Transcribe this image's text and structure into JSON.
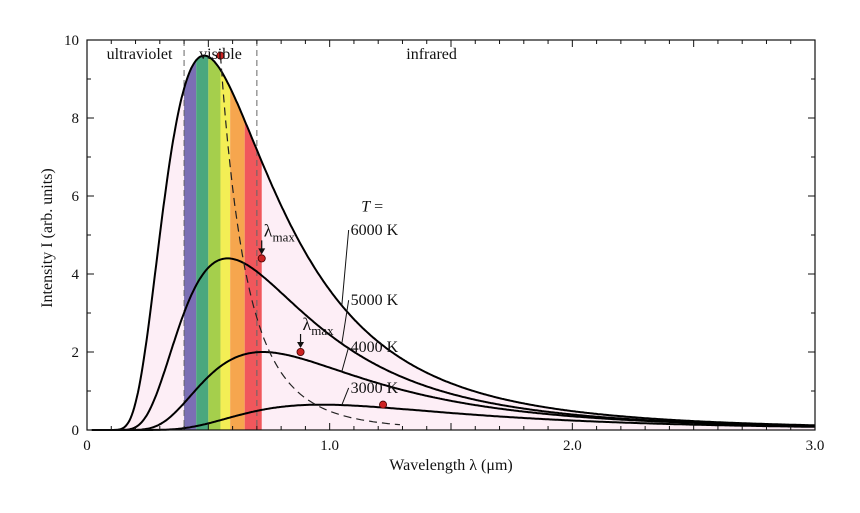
{
  "chart_data": {
    "type": "line",
    "xlabel": "Wavelength λ (μm)",
    "ylabel": "Intensity I (arb. units)",
    "xlim": [
      0,
      3.0
    ],
    "ylim": [
      0,
      10
    ],
    "xticks": [
      {
        "value": 0,
        "label": "0"
      },
      {
        "value": 1.0,
        "label": "1.0"
      },
      {
        "value": 2.0,
        "label": "2.0"
      },
      {
        "value": 3.0,
        "label": "3.0"
      }
    ],
    "yticks": [
      {
        "value": 0,
        "label": "0"
      },
      {
        "value": 2,
        "label": "2"
      },
      {
        "value": 4,
        "label": "4"
      },
      {
        "value": 6,
        "label": "6"
      },
      {
        "value": 8,
        "label": "8"
      },
      {
        "value": 10,
        "label": "10"
      }
    ],
    "regions": [
      {
        "label": "ultraviolet",
        "from": 0,
        "to": 0.4
      },
      {
        "label": "visible",
        "from": 0.4,
        "to": 0.7
      },
      {
        "label": "infrared",
        "from": 0.7,
        "to": 3.0
      }
    ],
    "visible_bands": [
      {
        "from": 0.4,
        "to": 0.45,
        "color": "#7b6fb4"
      },
      {
        "from": 0.45,
        "to": 0.5,
        "color": "#4aa77e"
      },
      {
        "from": 0.5,
        "to": 0.55,
        "color": "#a5cf4c"
      },
      {
        "from": 0.55,
        "to": 0.59,
        "color": "#f3ee55"
      },
      {
        "from": 0.59,
        "to": 0.65,
        "color": "#f6a64e"
      },
      {
        "from": 0.65,
        "to": 0.72,
        "color": "#f0575c"
      }
    ],
    "temperature_label": "T =",
    "series": [
      {
        "name": "6000 K",
        "temperature": 6000,
        "peak": {
          "x": 0.55,
          "y": 9.6
        },
        "end_value": 1.0
      },
      {
        "name": "5000 K",
        "temperature": 5000,
        "peak": {
          "x": 0.72,
          "y": 4.4
        },
        "end_value": 0.55
      },
      {
        "name": "4000 K",
        "temperature": 4000,
        "peak": {
          "x": 0.88,
          "y": 2.0
        },
        "end_value": 0.3
      },
      {
        "name": "3000 K",
        "temperature": 3000,
        "peak": {
          "x": 1.22,
          "y": 0.65
        },
        "end_value": 0.1
      }
    ],
    "lambda_max_label": "λ",
    "lambda_max_subscript": "max",
    "lambda_max_annotations": [
      {
        "series": "5000 K"
      },
      {
        "series": "4000 K"
      }
    ],
    "fill_color": "#fdeef6",
    "line_color": "#000000",
    "peak_marker_color": "#cc2222"
  }
}
